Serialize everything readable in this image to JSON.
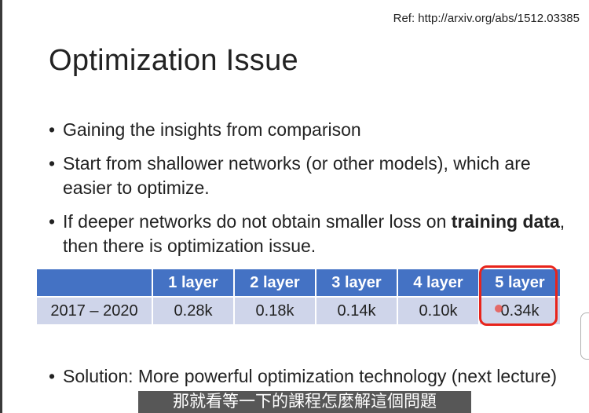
{
  "ref": "Ref: http://arxiv.org/abs/1512.03385",
  "title": "Optimization Issue",
  "bullets": [
    {
      "text": "Gaining the insights from comparison"
    },
    {
      "text": "Start from shallower networks (or other models), which are easier to optimize."
    },
    {
      "pre": "If deeper networks do not obtain smaller loss on ",
      "bold": "training data",
      "post": ",  then there is optimization issue."
    }
  ],
  "table": {
    "headers": [
      "",
      "1 layer",
      "2 layer",
      "3 layer",
      "4 layer",
      "5 layer"
    ],
    "row": [
      "2017 – 2020",
      "0.28k",
      "0.18k",
      "0.14k",
      "0.10k",
      "0.34k"
    ]
  },
  "solution": "Solution: More powerful optimization technology (next lecture)",
  "subtitle": "那就看等一下的課程怎麼解這個問題",
  "colors": {
    "header_bg": "#4472c4",
    "cell_bg": "#cfd5ea",
    "highlight": "#e8241b"
  }
}
